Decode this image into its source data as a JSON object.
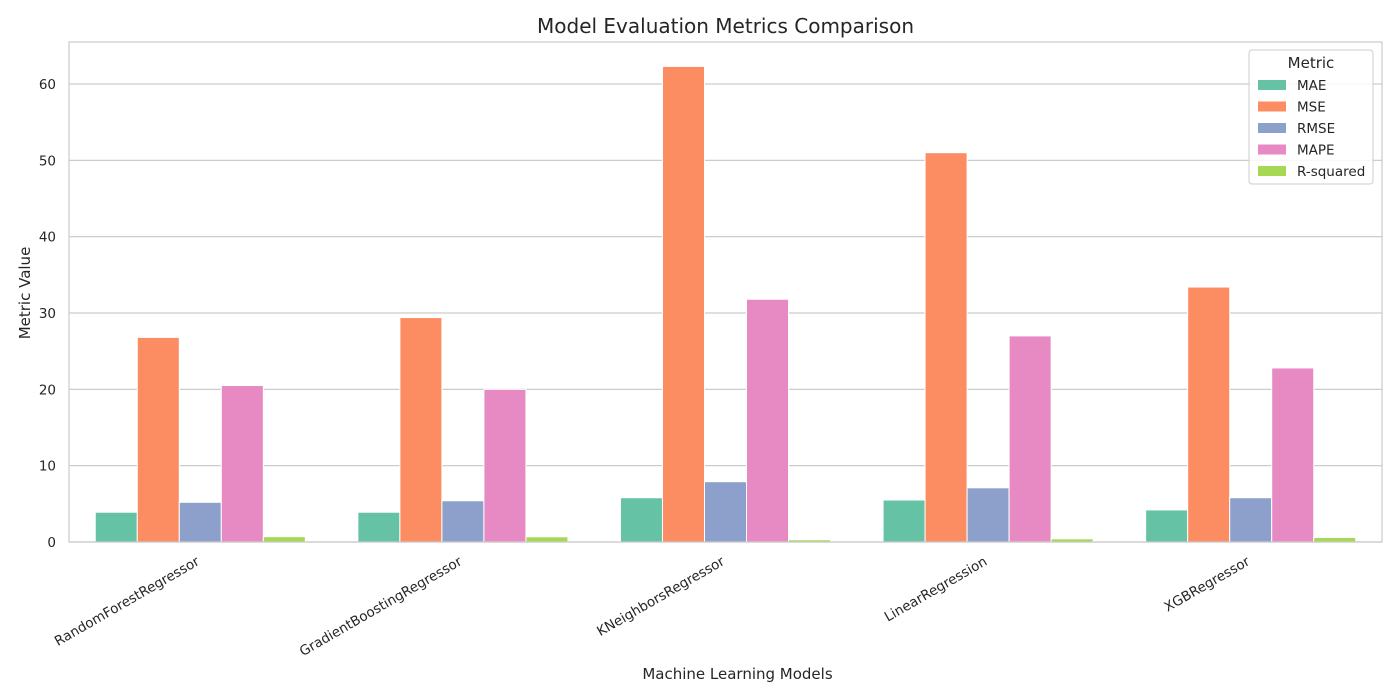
{
  "chart_data": {
    "type": "bar",
    "title": "Model Evaluation Metrics Comparison",
    "xlabel": "Machine Learning Models",
    "ylabel": "Metric Value",
    "ylim": [
      0,
      65.5
    ],
    "yticks": [
      0,
      10,
      20,
      30,
      40,
      50,
      60
    ],
    "grid": "horizontal",
    "legend_title": "Metric",
    "legend_position": "top-right",
    "categories": [
      "RandomForestRegressor",
      "GradientBoostingRegressor",
      "KNeighborsRegressor",
      "LinearRegression",
      "XGBRegressor"
    ],
    "series": [
      {
        "name": "MAE",
        "color": "#66c2a5",
        "values": [
          3.9,
          3.9,
          5.8,
          5.5,
          4.2
        ]
      },
      {
        "name": "MSE",
        "color": "#fc8d62",
        "values": [
          26.8,
          29.4,
          62.3,
          51.0,
          33.4
        ]
      },
      {
        "name": "RMSE",
        "color": "#8da0cb",
        "values": [
          5.2,
          5.4,
          7.9,
          7.1,
          5.8
        ]
      },
      {
        "name": "MAPE",
        "color": "#e78ac3",
        "values": [
          20.5,
          20.0,
          31.8,
          27.0,
          22.8
        ]
      },
      {
        "name": "R-squared",
        "color": "#a6d854",
        "values": [
          0.7,
          0.68,
          0.29,
          0.42,
          0.6
        ]
      }
    ]
  }
}
